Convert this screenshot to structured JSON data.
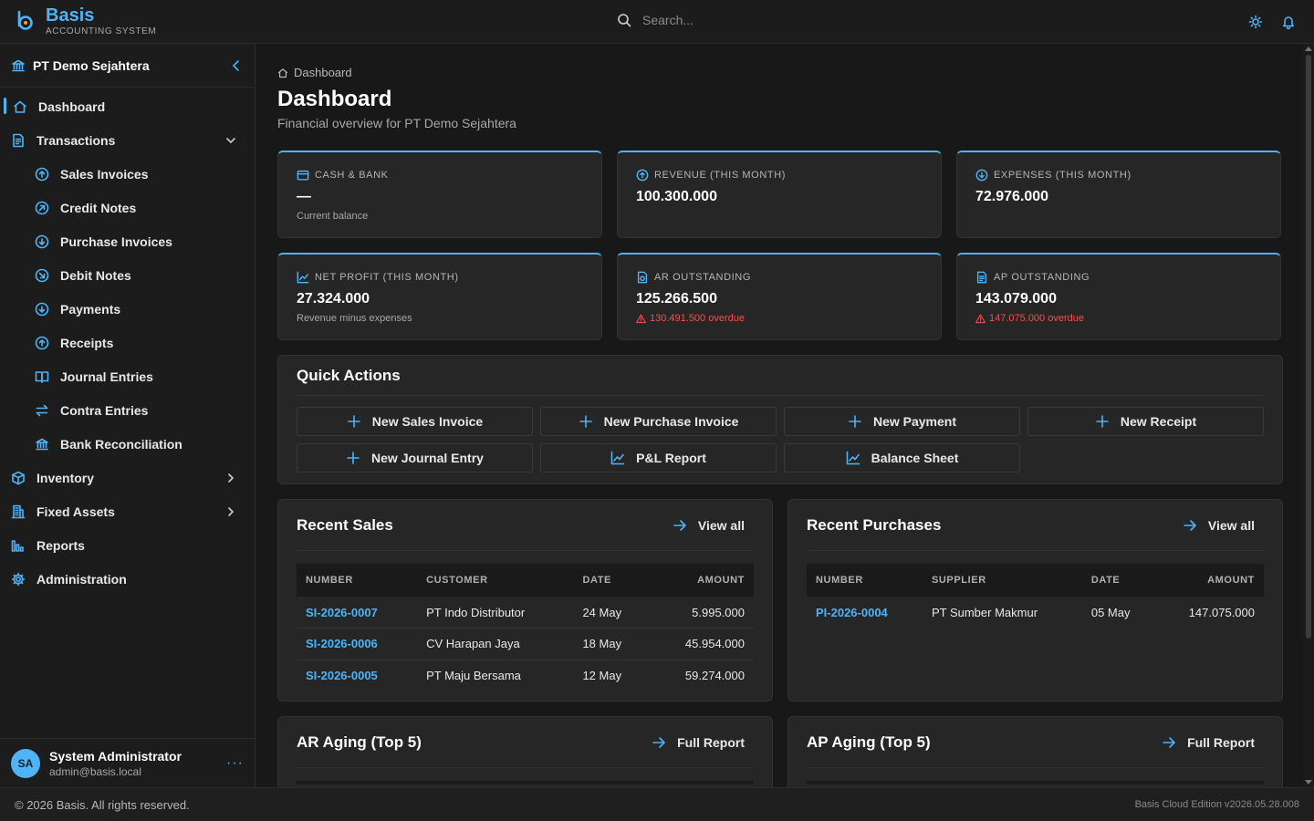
{
  "brand": {
    "name": "Basis",
    "subtitle": "ACCOUNTING SYSTEM"
  },
  "search": {
    "placeholder": "Search..."
  },
  "header": {
    "icons": [
      "sun-icon",
      "bell-icon"
    ]
  },
  "sidebar": {
    "org_name": "PT Demo Sejahtera",
    "items": [
      {
        "label": "Dashboard",
        "icon": "home-icon",
        "active": true
      },
      {
        "label": "Transactions",
        "icon": "document-icon",
        "expanded": true
      },
      {
        "label": "Sales Invoices",
        "icon": "arrow-up-circle-icon"
      },
      {
        "label": "Credit Notes",
        "icon": "arrow-up-right-circle-icon"
      },
      {
        "label": "Purchase Invoices",
        "icon": "arrow-down-circle-icon"
      },
      {
        "label": "Debit Notes",
        "icon": "arrow-down-right-circle-icon"
      },
      {
        "label": "Payments",
        "icon": "arrow-down-circle-icon"
      },
      {
        "label": "Receipts",
        "icon": "arrow-up-circle-icon"
      },
      {
        "label": "Journal Entries",
        "icon": "book-icon"
      },
      {
        "label": "Contra Entries",
        "icon": "swap-icon"
      },
      {
        "label": "Bank Reconciliation",
        "icon": "bank-icon"
      },
      {
        "label": "Inventory",
        "icon": "box-icon"
      },
      {
        "label": "Fixed Assets",
        "icon": "building-icon"
      },
      {
        "label": "Reports",
        "icon": "bar-chart-icon"
      },
      {
        "label": "Administration",
        "icon": "gear-icon"
      }
    ]
  },
  "user": {
    "initials": "SA",
    "name": "System Administrator",
    "email": "admin@basis.local",
    "menu": "···"
  },
  "main": {
    "breadcrumb": "Dashboard",
    "title": "Dashboard",
    "subtitle": "Financial overview for PT Demo Sejahtera",
    "stats": [
      {
        "label": "CASH & BANK",
        "value": "—",
        "note": "Current balance",
        "icon": "wallet-icon"
      },
      {
        "label": "REVENUE (THIS MONTH)",
        "value": "100.300.000",
        "icon": "arrow-up-circle-icon"
      },
      {
        "label": "EXPENSES (THIS MONTH)",
        "value": "72.976.000",
        "icon": "arrow-down-circle-icon"
      },
      {
        "label": "NET PROFIT (THIS MONTH)",
        "value": "27.324.000",
        "note": "Revenue minus expenses",
        "icon": "trend-icon"
      },
      {
        "label": "AR OUTSTANDING",
        "value": "125.266.500",
        "warning": "130.491.500 overdue",
        "icon": "receivable-icon"
      },
      {
        "label": "AP OUTSTANDING",
        "value": "143.079.000",
        "warning": "147.075.000 overdue",
        "icon": "payable-icon"
      }
    ],
    "quick_actions": {
      "title": "Quick Actions",
      "buttons": [
        "New Sales Invoice",
        "New Purchase Invoice",
        "New Payment",
        "New Receipt",
        "New Journal Entry",
        "P&L Report",
        "Balance Sheet"
      ]
    },
    "recent_sales": {
      "title": "Recent Sales",
      "link": "View all",
      "columns": [
        "NUMBER",
        "CUSTOMER",
        "DATE",
        "AMOUNT"
      ],
      "rows": [
        [
          "SI-2026-0007",
          "PT Indo Distributor",
          "24 May",
          "5.995.000"
        ],
        [
          "SI-2026-0006",
          "CV Harapan Jaya",
          "18 May",
          "45.954.000"
        ],
        [
          "SI-2026-0005",
          "PT Maju Bersama",
          "12 May",
          "59.274.000"
        ]
      ]
    },
    "recent_purchases": {
      "title": "Recent Purchases",
      "link": "View all",
      "columns": [
        "NUMBER",
        "SUPPLIER",
        "DATE",
        "AMOUNT"
      ],
      "rows": [
        [
          "PI-2026-0004",
          "PT Sumber Makmur",
          "05 May",
          "147.075.000"
        ]
      ]
    },
    "ar_aging": {
      "title": "AR Aging (Top 5)",
      "link": "Full Report"
    },
    "ap_aging": {
      "title": "AP Aging (Top 5)",
      "link": "Full Report"
    }
  },
  "footer": {
    "copyright": "© 2026 Basis. All rights reserved.",
    "version": "Basis Cloud Edition v2026.05.28.008"
  },
  "colors": {
    "accent": "#4fb3f6",
    "danger": "#ef5350",
    "background": "#181818",
    "card": "#262626"
  }
}
